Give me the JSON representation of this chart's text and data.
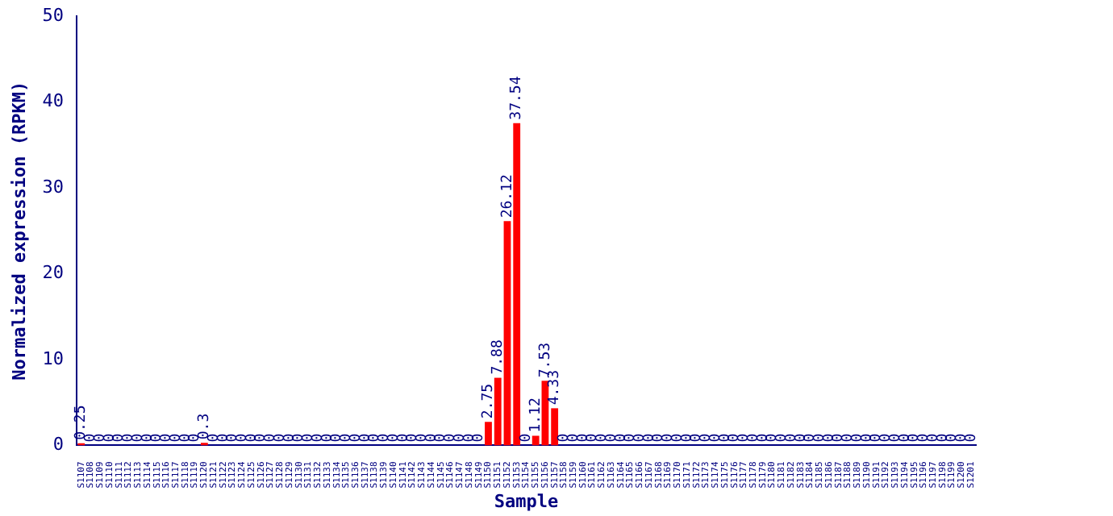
{
  "chart_data": {
    "type": "bar",
    "xlabel": "Sample",
    "ylabel": "Normalized expression (RPKM)",
    "categories": [
      "S1107",
      "S1108",
      "S1109",
      "S1110",
      "S1111",
      "S1112",
      "S1113",
      "S1114",
      "S1115",
      "S1116",
      "S1117",
      "S1118",
      "S1119",
      "S1120",
      "S1121",
      "S1122",
      "S1123",
      "S1124",
      "S1125",
      "S1126",
      "S1127",
      "S1128",
      "S1129",
      "S1130",
      "S1131",
      "S1132",
      "S1133",
      "S1134",
      "S1135",
      "S1136",
      "S1137",
      "S1138",
      "S1139",
      "S1140",
      "S1141",
      "S1142",
      "S1143",
      "S1144",
      "S1145",
      "S1146",
      "S1147",
      "S1148",
      "S1149",
      "S1150",
      "S1151",
      "S1152",
      "S1153",
      "S1154",
      "S1155",
      "S1156",
      "S1157",
      "S1158",
      "S1159",
      "S1160",
      "S1161",
      "S1162",
      "S1163",
      "S1164",
      "S1165",
      "S1166",
      "S1167",
      "S1168",
      "S1169",
      "S1170",
      "S1171",
      "S1172",
      "S1173",
      "S1174",
      "S1175",
      "S1176",
      "S1177",
      "S1178",
      "S1179",
      "S1180",
      "S1181",
      "S1182",
      "S1183",
      "S1184",
      "S1185",
      "S1186",
      "S1187",
      "S1188",
      "S1189",
      "S1190",
      "S1191",
      "S1192",
      "S1193",
      "S1194",
      "S1195",
      "S1196",
      "S1197",
      "S1198",
      "S1199",
      "S1200",
      "S1201"
    ],
    "values": [
      0.25,
      0,
      0,
      0,
      0,
      0,
      0,
      0,
      0,
      0,
      0,
      0,
      0,
      0.3,
      0,
      0,
      0,
      0,
      0,
      0,
      0,
      0,
      0,
      0,
      0,
      0,
      0,
      0,
      0,
      0,
      0,
      0,
      0,
      0,
      0,
      0,
      0,
      0,
      0,
      0,
      0,
      0,
      0,
      2.75,
      7.88,
      26.12,
      37.54,
      0,
      1.12,
      7.53,
      4.33,
      0,
      0,
      0,
      0,
      0,
      0,
      0,
      0,
      0,
      0,
      0,
      0,
      0,
      0,
      0,
      0,
      0,
      0,
      0,
      0,
      0,
      0,
      0,
      0,
      0,
      0,
      0,
      0,
      0,
      0,
      0,
      0,
      0,
      0,
      0,
      0,
      0,
      0,
      0,
      0,
      0,
      0,
      0,
      0
    ],
    "color": "#ff0000",
    "ylim": [
      0,
      50
    ],
    "yticks": [
      0,
      10,
      20,
      30,
      40,
      50
    ],
    "data_labels": true,
    "grid": false,
    "legend": false
  }
}
